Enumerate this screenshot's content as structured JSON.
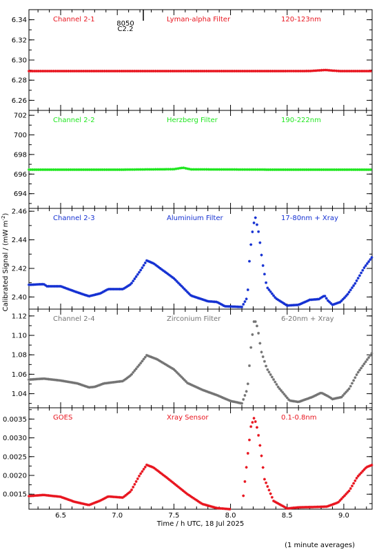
{
  "chart_data": {
    "type": "scatter",
    "marker": "asterisk",
    "shared_x": {
      "label": "Time / h UTC, 18 Jul 2025",
      "range": [
        6.22,
        9.25
      ],
      "ticks": [
        6.5,
        7.0,
        7.5,
        8.0,
        8.5,
        9.0
      ],
      "tick_labels": [
        "6.5",
        "7.0",
        "7.5",
        "8.0",
        "8.5",
        "9.0"
      ],
      "minor_step": 0.1
    },
    "ylabel": "Calibrated Signal / (mW m",
    "ylabel_sup": "-2",
    "ylabel_suffix": ")",
    "footnote": "(1 minute averages)",
    "top_annotation": {
      "line1": "8050",
      "line2": "C2.2",
      "x": 7.23
    },
    "panels": [
      {
        "channel": "Channel 2-1",
        "filter": "Lyman-alpha Filter",
        "band": "120-123nm",
        "color": "#e8141e",
        "ylim": [
          6.25,
          6.35
        ],
        "ticks": [
          6.26,
          6.28,
          6.3,
          6.32,
          6.34
        ],
        "tick_labels": [
          "6.26",
          "6.28",
          "6.30",
          "6.32",
          "6.34"
        ],
        "series": [
          [
            6.22,
            6.289
          ],
          [
            6.5,
            6.289
          ],
          [
            7.0,
            6.289
          ],
          [
            7.5,
            6.289
          ],
          [
            8.0,
            6.289
          ],
          [
            8.5,
            6.289
          ],
          [
            8.7,
            6.2891
          ],
          [
            8.78,
            6.2897
          ],
          [
            8.84,
            6.2901
          ],
          [
            8.9,
            6.2895
          ],
          [
            8.97,
            6.289
          ],
          [
            9.25,
            6.289
          ]
        ]
      },
      {
        "channel": "Channel 2-2",
        "filter": "Herzberg Filter",
        "band": "190-222nm",
        "color": "#1ee61e",
        "ylim": [
          692.5,
          702.5
        ],
        "ticks": [
          694,
          696,
          698,
          700,
          702
        ],
        "tick_labels": [
          "694",
          "696",
          "698",
          "700",
          "702"
        ],
        "series": [
          [
            6.22,
            696.45
          ],
          [
            7.0,
            696.45
          ],
          [
            7.5,
            696.5
          ],
          [
            7.58,
            696.65
          ],
          [
            7.65,
            696.48
          ],
          [
            8.5,
            696.45
          ],
          [
            9.25,
            696.45
          ]
        ]
      },
      {
        "channel": "Channel 2-3",
        "filter": "Aluminium Filter",
        "band": "17-80nm + Xray",
        "color": "#1430d2",
        "ylim": [
          2.3915,
          2.462
        ],
        "ticks": [
          2.4,
          2.42,
          2.44,
          2.46
        ],
        "tick_labels": [
          "2.40",
          "2.42",
          "2.44",
          "2.46"
        ],
        "series": [
          [
            6.22,
            2.4085
          ],
          [
            6.35,
            2.409
          ],
          [
            6.38,
            2.4075
          ],
          [
            6.5,
            2.4075
          ],
          [
            6.62,
            2.404
          ],
          [
            6.75,
            2.4005
          ],
          [
            6.85,
            2.4025
          ],
          [
            6.92,
            2.4055
          ],
          [
            7.05,
            2.4055
          ],
          [
            7.12,
            2.409
          ],
          [
            7.2,
            2.418
          ],
          [
            7.26,
            2.4255
          ],
          [
            7.32,
            2.4235
          ],
          [
            7.5,
            2.413
          ],
          [
            7.65,
            2.401
          ],
          [
            7.8,
            2.397
          ],
          [
            7.88,
            2.3965
          ],
          [
            7.95,
            2.3935
          ],
          [
            8.1,
            2.393
          ],
          [
            8.15,
            2.4
          ],
          [
            8.17,
            2.43
          ],
          [
            8.2,
            2.45
          ],
          [
            8.22,
            2.4555
          ],
          [
            8.25,
            2.4445
          ],
          [
            8.28,
            2.425
          ],
          [
            8.32,
            2.407
          ],
          [
            8.4,
            2.399
          ],
          [
            8.5,
            2.394
          ],
          [
            8.6,
            2.3945
          ],
          [
            8.7,
            2.398
          ],
          [
            8.78,
            2.3985
          ],
          [
            8.83,
            2.401
          ],
          [
            8.86,
            2.3975
          ],
          [
            8.9,
            2.3945
          ],
          [
            8.97,
            2.3965
          ],
          [
            9.03,
            2.4015
          ],
          [
            9.1,
            2.4095
          ],
          [
            9.18,
            2.4205
          ],
          [
            9.25,
            2.428
          ]
        ]
      },
      {
        "channel": "Channel 2-4",
        "filter": "Zirconium Filter",
        "band": "6-20nm + Xray",
        "color": "#737373",
        "ylim": [
          1.0255,
          1.127
        ],
        "ticks": [
          1.04,
          1.06,
          1.08,
          1.1,
          1.12
        ],
        "tick_labels": [
          "1.04",
          "1.06",
          "1.08",
          "1.10",
          "1.12"
        ],
        "series": [
          [
            6.22,
            1.0545
          ],
          [
            6.35,
            1.0555
          ],
          [
            6.5,
            1.0535
          ],
          [
            6.65,
            1.0505
          ],
          [
            6.75,
            1.0465
          ],
          [
            6.8,
            1.047
          ],
          [
            6.88,
            1.0505
          ],
          [
            7.05,
            1.053
          ],
          [
            7.12,
            1.059
          ],
          [
            7.2,
            1.0705
          ],
          [
            7.26,
            1.0795
          ],
          [
            7.35,
            1.0755
          ],
          [
            7.5,
            1.065
          ],
          [
            7.62,
            1.051
          ],
          [
            7.75,
            1.044
          ],
          [
            7.88,
            1.0385
          ],
          [
            8.0,
            1.0325
          ],
          [
            8.1,
            1.03
          ],
          [
            8.15,
            1.0455
          ],
          [
            8.18,
            1.0875
          ],
          [
            8.21,
            1.1175
          ],
          [
            8.24,
            1.1075
          ],
          [
            8.27,
            1.084
          ],
          [
            8.32,
            1.066
          ],
          [
            8.42,
            1.047
          ],
          [
            8.52,
            1.033
          ],
          [
            8.6,
            1.0315
          ],
          [
            8.72,
            1.0365
          ],
          [
            8.8,
            1.041
          ],
          [
            8.86,
            1.0375
          ],
          [
            8.9,
            1.0345
          ],
          [
            8.98,
            1.0365
          ],
          [
            9.05,
            1.0455
          ],
          [
            9.12,
            1.061
          ],
          [
            9.2,
            1.074
          ],
          [
            9.25,
            1.082
          ]
        ]
      },
      {
        "channel": "GOES",
        "filter": "Xray Sensor",
        "band": "0.1-0.8nm",
        "color": "#e8141e",
        "ylim": [
          0.0011,
          0.0038
        ],
        "ticks": [
          0.0015,
          0.002,
          0.0025,
          0.003,
          0.0035
        ],
        "tick_labels": [
          "0.0015",
          "0.0020",
          "0.0025",
          "0.0030",
          "0.0035"
        ],
        "series": [
          [
            6.22,
            0.00145
          ],
          [
            6.35,
            0.00148
          ],
          [
            6.5,
            0.00143
          ],
          [
            6.62,
            0.0013
          ],
          [
            6.75,
            0.00121
          ],
          [
            6.85,
            0.00133
          ],
          [
            6.92,
            0.00144
          ],
          [
            7.05,
            0.00141
          ],
          [
            7.12,
            0.00158
          ],
          [
            7.2,
            0.00202
          ],
          [
            7.26,
            0.00228
          ],
          [
            7.32,
            0.00221
          ],
          [
            7.45,
            0.00191
          ],
          [
            7.62,
            0.0015
          ],
          [
            7.75,
            0.00124
          ],
          [
            7.88,
            0.00113
          ],
          [
            8.0,
            0.0011
          ],
          [
            8.1,
            0.00108
          ],
          [
            8.15,
            0.0025
          ],
          [
            8.18,
            0.0033
          ],
          [
            8.21,
            0.00355
          ],
          [
            8.24,
            0.0032
          ],
          [
            8.27,
            0.0026
          ],
          [
            8.3,
            0.0019
          ],
          [
            8.38,
            0.00132
          ],
          [
            8.5,
            0.00112
          ],
          [
            8.6,
            0.00115
          ],
          [
            8.75,
            0.00116
          ],
          [
            8.85,
            0.00117
          ],
          [
            8.95,
            0.00128
          ],
          [
            9.05,
            0.0016
          ],
          [
            9.12,
            0.00196
          ],
          [
            9.2,
            0.00222
          ],
          [
            9.25,
            0.00228
          ]
        ]
      }
    ]
  }
}
